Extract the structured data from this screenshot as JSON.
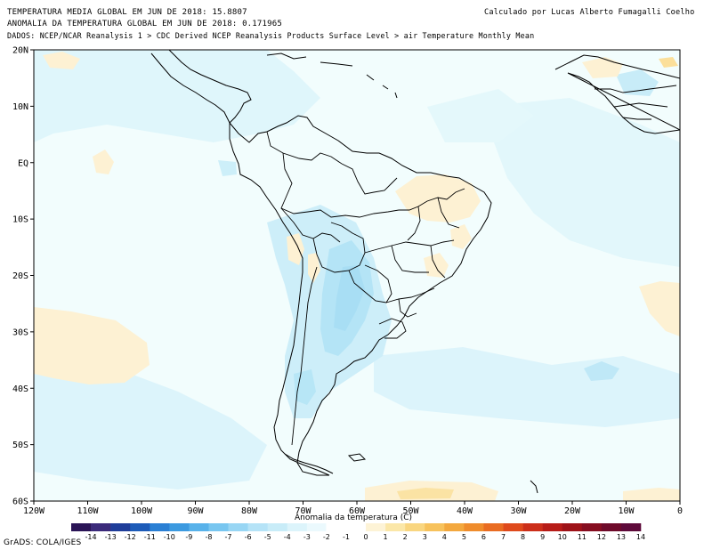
{
  "header": {
    "line1": "TEMPERATURA MEDIA GLOBAL EM JUN DE 2018: 15.8807",
    "line2": "ANOMALIA DA TEMPERATURA GLOBAL EM JUN DE 2018: 0.171965",
    "line3": "DADOS: NCEP/NCAR Reanalysis 1 > CDC Derived NCEP Reanalysis Products Surface Level > air Temperature Monthly Mean",
    "credit": "Calculado por Lucas Alberto Fumagalli Coelho"
  },
  "axes": {
    "lat_labels": [
      "20N",
      "10N",
      "EQ",
      "10S",
      "20S",
      "30S",
      "40S",
      "50S",
      "60S"
    ],
    "lon_labels": [
      "120W",
      "110W",
      "100W",
      "90W",
      "80W",
      "70W",
      "60W",
      "50W",
      "40W",
      "30W",
      "20W",
      "10W",
      "0"
    ]
  },
  "colorbar": {
    "title": "Anomalia da temperatura (C)",
    "labels": [
      "-14",
      "-13",
      "-12",
      "-11",
      "-10",
      "-9",
      "-8",
      "-7",
      "-6",
      "-5",
      "-4",
      "-3",
      "-2",
      "-1",
      "0",
      "1",
      "2",
      "3",
      "4",
      "5",
      "6",
      "7",
      "8",
      "9",
      "10",
      "11",
      "12",
      "13",
      "14"
    ],
    "colors": [
      "#2a1456",
      "#3b2a7a",
      "#1f3d99",
      "#1d5bb8",
      "#2a7fd4",
      "#3c9ae0",
      "#58b2ea",
      "#78c6f0",
      "#98d6f4",
      "#b5e3f7",
      "#c8ecf8",
      "#dcf4fb",
      "#ebf9fd",
      "#ffffff",
      "#ffffff",
      "#fdf3d6",
      "#fbe7a8",
      "#f9d680",
      "#f7c25c",
      "#f3a83e",
      "#ef8c2c",
      "#e96c22",
      "#df4a1c",
      "#cc2f1a",
      "#b71c18",
      "#9e1218",
      "#860d20",
      "#6e0a2a",
      "#5e0a3a"
    ]
  },
  "footer": {
    "grads": "GrADS: COLA/IGES"
  },
  "colors": {
    "ocean_background": "#eefdfd",
    "cool_anomaly_light": "#dbf4fb",
    "cool_anomaly_mid": "#bde9f7",
    "warm_anomaly": "#fdf1d2",
    "warm_anomaly_strong": "#fbe0a0"
  }
}
